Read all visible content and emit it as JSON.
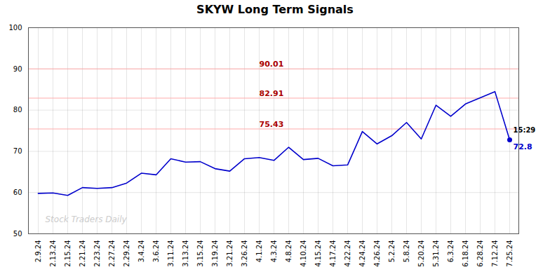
{
  "chart_data": {
    "type": "line",
    "title": "SKYW Long Term Signals",
    "categories": [
      "2.9.24",
      "2.13.24",
      "2.15.24",
      "2.21.24",
      "2.23.24",
      "2.27.24",
      "2.29.24",
      "3.4.24",
      "3.6.24",
      "3.11.24",
      "3.13.24",
      "3.15.24",
      "3.19.24",
      "3.21.24",
      "3.26.24",
      "4.1.24",
      "4.3.24",
      "4.8.24",
      "4.10.24",
      "4.15.24",
      "4.17.24",
      "4.22.24",
      "4.24.24",
      "4.26.24",
      "5.2.24",
      "5.8.24",
      "5.20.24",
      "5.31.24",
      "6.3.24",
      "6.18.24",
      "6.28.24",
      "7.12.24",
      "7.25.24"
    ],
    "values": [
      59.8,
      59.9,
      59.3,
      61.2,
      61.0,
      61.2,
      62.3,
      64.7,
      64.3,
      68.2,
      67.4,
      67.5,
      65.8,
      65.2,
      68.2,
      68.5,
      67.8,
      71.0,
      68.0,
      68.3,
      66.5,
      66.7,
      74.8,
      71.8,
      73.8,
      77.0,
      73.0,
      81.2,
      78.5,
      81.5,
      83.0,
      84.5,
      72.8
    ],
    "color": "#0000cc",
    "ylim": [
      50,
      100
    ],
    "yticks": [
      50,
      60,
      70,
      80,
      90,
      100
    ],
    "grid": true,
    "hlines": [
      {
        "y": 90.01,
        "label": "90.01",
        "color": "#ffaaaa",
        "label_color": "#aa0000"
      },
      {
        "y": 82.91,
        "label": "82.91",
        "color": "#ffaaaa",
        "label_color": "#aa0000"
      },
      {
        "y": 75.43,
        "label": "75.43",
        "color": "#ffaaaa",
        "label_color": "#aa0000"
      }
    ],
    "last_point": {
      "x": "7.25.24",
      "y": 72.8,
      "color": "#0000cc",
      "label": "15:29",
      "value_label": "72.8"
    },
    "watermark": {
      "text": "Stock Traders Daily",
      "x": "2.9.24",
      "y": 52.5,
      "color": "#cccccc"
    }
  }
}
